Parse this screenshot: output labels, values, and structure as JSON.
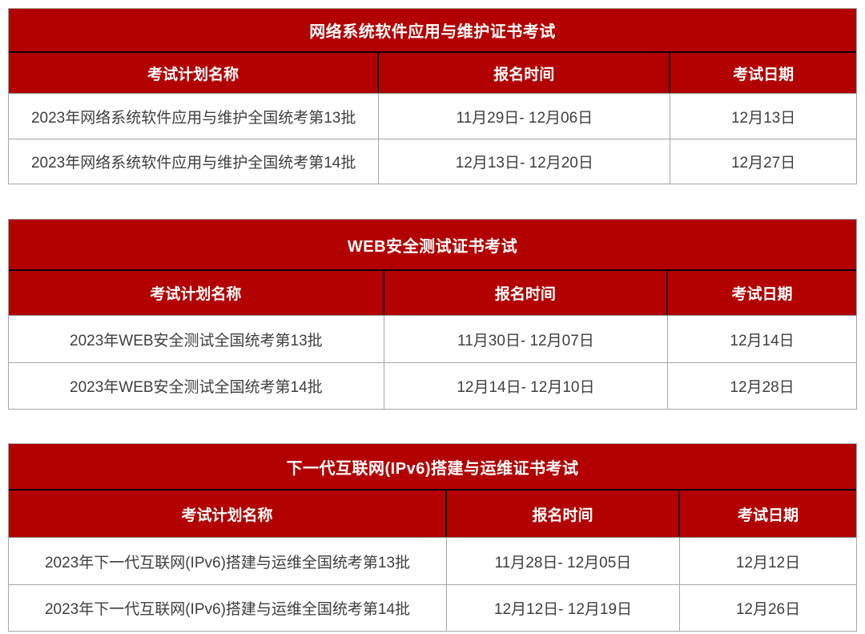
{
  "colors": {
    "brand_red": "#b30101",
    "title_divider": "#0d0000",
    "header_text": "#ffffff",
    "body_text": "#3f3f3f",
    "grid_line": "#a6a6a6"
  },
  "tables": [
    {
      "title": "网络系统软件应用与维护证书考试",
      "columns": [
        "考试计划名称",
        "报名时间",
        "考试日期"
      ],
      "rows": [
        [
          "2023年网络系统软件应用与维护全国统考第13批",
          "11月29日- 12月06日",
          "12月13日"
        ],
        [
          "2023年网络系统软件应用与维护全国统考第14批",
          "12月13日- 12月20日",
          "12月27日"
        ]
      ]
    },
    {
      "title": "WEB安全测试证书考试",
      "columns": [
        "考试计划名称",
        "报名时间",
        "考试日期"
      ],
      "rows": [
        [
          "2023年WEB安全测试全国统考第13批",
          "11月30日- 12月07日",
          "12月14日"
        ],
        [
          "2023年WEB安全测试全国统考第14批",
          "12月14日- 12月10日",
          "12月28日"
        ]
      ]
    },
    {
      "title": "下一代互联网(IPv6)搭建与运维证书考试",
      "columns": [
        "考试计划名称",
        "报名时间",
        "考试日期"
      ],
      "rows": [
        [
          "2023年下一代互联网(IPv6)搭建与运维全国统考第13批",
          "11月28日- 12月05日",
          "12月12日"
        ],
        [
          "2023年下一代互联网(IPv6)搭建与运维全国统考第14批",
          "12月12日- 12月19日",
          "12月26日"
        ]
      ]
    }
  ]
}
